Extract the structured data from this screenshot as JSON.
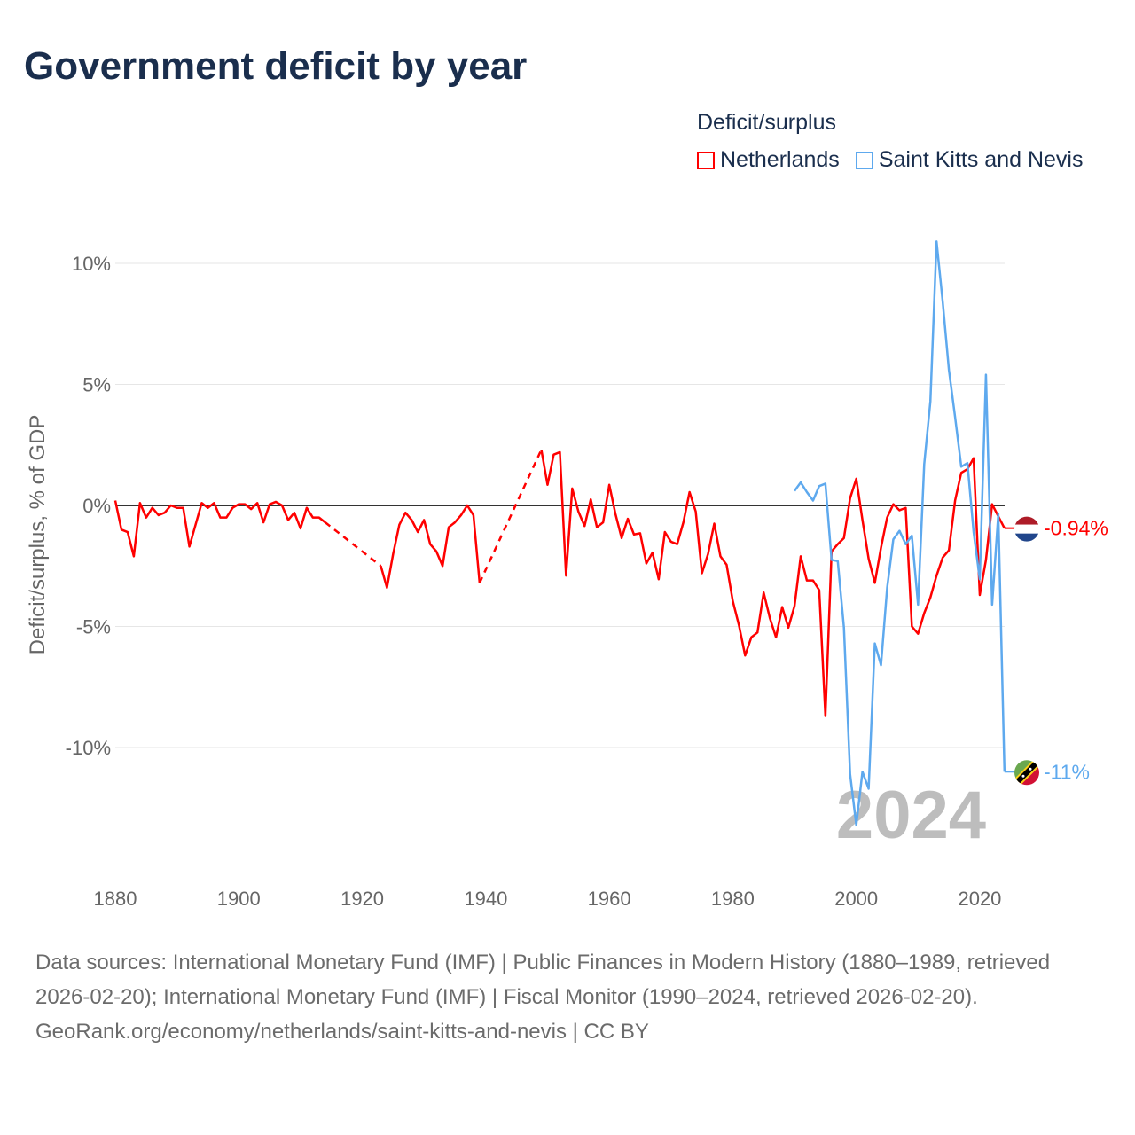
{
  "chart_data": {
    "type": "line",
    "title": "Government deficit by year",
    "legend_title": "Deficit/surplus",
    "legend_placement": "top-right",
    "ylabel": "Deficit/surplus, % of GDP",
    "xlabel": "",
    "xlim": [
      1880,
      2024
    ],
    "ylim": [
      -13.5,
      11
    ],
    "x_ticks": [
      1880,
      1900,
      1920,
      1940,
      1960,
      1980,
      2000,
      2020
    ],
    "x_tick_labels": [
      "1880",
      "1900",
      "1920",
      "1940",
      "1960",
      "1980",
      "2000",
      "2020"
    ],
    "y_ticks": [
      10,
      5,
      0,
      -5,
      -10
    ],
    "y_tick_labels": [
      "10%",
      "5%",
      "0%",
      "-5%",
      "-10%"
    ],
    "year_watermark": "2024",
    "series": [
      {
        "name": "Netherlands",
        "color": "#ff0000",
        "end_label": "-0.94%",
        "flag_icon": "netherlands-flag-icon",
        "start_year": 1880,
        "values": [
          0.2,
          -1.0,
          -1.1,
          -2.1,
          0.1,
          -0.5,
          -0.1,
          -0.4,
          -0.3,
          0,
          -0.1,
          -0.1,
          -1.7,
          -0.8,
          0.1,
          -0.1,
          0.1,
          -0.5,
          -0.5,
          -0.1,
          0.05,
          0.05,
          -0.15,
          0.1,
          -0.7,
          0.05,
          0.15,
          0,
          -0.6,
          -0.3,
          -0.95,
          -0.1,
          -0.5,
          -0.5,
          -0.7,
          null,
          null,
          null,
          null,
          null,
          null,
          null,
          null,
          -2.5,
          -3.4,
          -2.0,
          -0.8,
          -0.3,
          -0.6,
          -1.1,
          -0.6,
          -1.6,
          -1.9,
          -2.5,
          -0.9,
          -0.7,
          -0.4,
          0,
          -0.4,
          -3.2,
          null,
          null,
          null,
          null,
          null,
          null,
          null,
          null,
          null,
          2.3,
          0.85,
          2.1,
          2.2,
          -2.9,
          0.7,
          -0.25,
          -0.85,
          0.25,
          -0.9,
          -0.7,
          0.85,
          -0.35,
          -1.35,
          -0.55,
          -1.2,
          -1.15,
          -2.4,
          -1.95,
          -3.05,
          -1.1,
          -1.5,
          -1.6,
          -0.7,
          0.55,
          -0.25,
          -2.8,
          -2.0,
          -0.75,
          -2.1,
          -2.45,
          -3.95,
          -4.95,
          -6.2,
          -5.45,
          -5.25,
          -3.6,
          -4.65,
          -5.45,
          -4.2,
          -5.05,
          -4.15,
          -2.1,
          -3.1,
          -3.1,
          -3.5,
          -8.7,
          -1.9,
          -1.6,
          -1.35,
          0.3,
          1.1,
          -0.6,
          -2.2,
          -3.2,
          -1.75,
          -0.5,
          0.05,
          -0.2,
          -0.1,
          -5.0,
          -5.3,
          -4.45,
          -3.8,
          -2.9,
          -2.15,
          -1.85,
          0.2,
          1.35,
          1.5,
          1.95,
          -3.7,
          -2.25,
          0.05,
          -0.45,
          -0.94
        ]
      },
      {
        "name": "Saint Kitts and Nevis",
        "color": "#5ea9ee",
        "end_label": "-11%",
        "flag_icon": "saint-kitts-and-nevis-flag-icon",
        "start_year": 1990,
        "values": [
          0.6,
          0.95,
          0.55,
          0.2,
          0.8,
          0.9,
          -2.25,
          -2.3,
          -5.05,
          -11.1,
          -13.2,
          -11.0,
          -11.7,
          -5.7,
          -6.6,
          -3.4,
          -1.4,
          -1.05,
          -1.6,
          -1.25,
          -4.1,
          1.7,
          4.3,
          10.9,
          8.4,
          5.6,
          3.65,
          1.6,
          1.75,
          -1.1,
          -3.05,
          5.4,
          -4.1,
          -0.35,
          -11.0
        ]
      }
    ]
  },
  "footer": {
    "sources": "Data sources: International Monetary Fund (IMF) | Public Finances in Modern History (1880–1989, retrieved 2026-02-20); International Monetary Fund (IMF) | Fiscal Monitor (1990–2024, retrieved 2026-02-20).",
    "credit": "GeoRank.org/economy/netherlands/saint-kitts-and-nevis | CC BY"
  }
}
